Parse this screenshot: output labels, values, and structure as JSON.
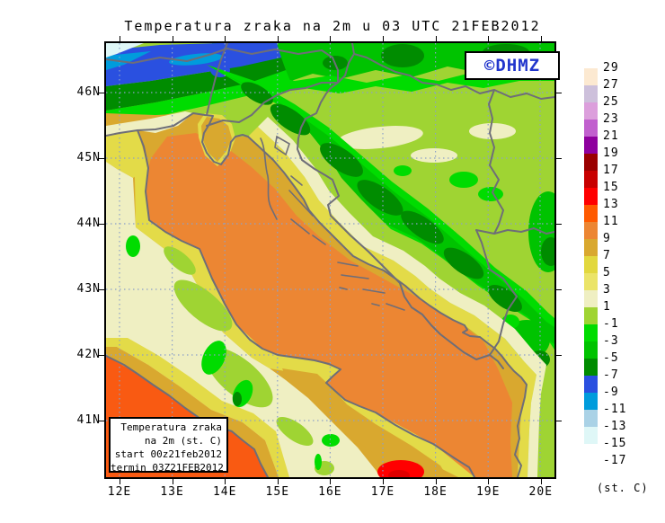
{
  "title": "Temperatura zraka na 2m u 03 UTC 21FEB2012",
  "copyright_badge": "©DHMZ",
  "inset": {
    "lines": [
      "Temperatura zraka",
      "na 2m (st. C)",
      "start 00z21feb2012",
      "termin 03Z21FEB2012"
    ]
  },
  "axes": {
    "lat_labels": [
      "46N",
      "45N",
      "44N",
      "43N",
      "42N",
      "41N"
    ],
    "lon_labels": [
      "12E",
      "13E",
      "14E",
      "15E",
      "16E",
      "17E",
      "18E",
      "19E",
      "20E"
    ]
  },
  "colorbar": {
    "unit": "(st. C)",
    "boundary_labels": [
      "29",
      "27",
      "25",
      "23",
      "21",
      "19",
      "17",
      "15",
      "13",
      "11",
      "9",
      "7",
      "5",
      "3",
      "1",
      "-1",
      "-3",
      "-5",
      "-7",
      "-9",
      "-11",
      "-13",
      "-15",
      "-17"
    ],
    "band_colors": [
      "#FCE9D1",
      "#CDC0DB",
      "#DC9FDC",
      "#C160CE",
      "#8E009E",
      "#9A0000",
      "#C80000",
      "#FF0000",
      "#FF5A00",
      "#EC8633",
      "#D9A82F",
      "#E2D83E",
      "#EBE468",
      "#EFEFC2",
      "#9FD433",
      "#00DC00",
      "#00C300",
      "#008C00",
      "#2A50E0",
      "#009CDC",
      "#AAD2E6",
      "#DFF7F7",
      "#FFFFFF"
    ]
  },
  "chart_data": {
    "type": "heatmap",
    "title": "Temperatura zraka na 2m u 03 UTC 21FEB2012",
    "region": "Adriatic / Croatia",
    "x_axis": {
      "label": "longitude",
      "ticks": [
        "12E",
        "13E",
        "14E",
        "15E",
        "16E",
        "17E",
        "18E",
        "19E",
        "20E"
      ]
    },
    "y_axis": {
      "label": "latitude",
      "ticks": [
        "46N",
        "45N",
        "44N",
        "43N",
        "42N",
        "41N"
      ]
    },
    "scale_boundaries_degC": [
      29,
      27,
      25,
      23,
      21,
      19,
      17,
      15,
      13,
      11,
      9,
      7,
      5,
      3,
      1,
      -1,
      -3,
      -5,
      -7,
      -9,
      -11,
      -13,
      -15,
      -17
    ],
    "scale_unit": "(st. C)",
    "notable_values": {
      "adriatic_sea_degC": "9 to 13",
      "coastal_strip_degC": "5 to 9",
      "inland_croatia_bosnia_degC": "-7 to 1",
      "alps_top_left_degC": "-9 to -15",
      "hot_spot_south_adriatic_degC": "13 to 15"
    }
  }
}
